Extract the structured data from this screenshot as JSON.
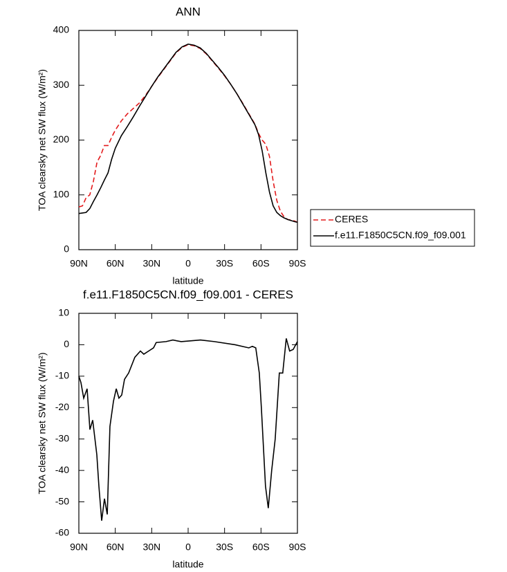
{
  "chart_data": [
    {
      "type": "line",
      "title": "ANN",
      "xlabel": "latitude",
      "ylabel": "TOA clearsky net SW flux (W/m²)",
      "x": [
        90,
        87,
        84,
        81,
        78,
        75,
        72,
        69,
        66,
        63,
        60,
        55,
        50,
        45,
        40,
        35,
        30,
        25,
        20,
        15,
        10,
        5,
        0,
        -5,
        -10,
        -15,
        -20,
        -25,
        -30,
        -35,
        -40,
        -45,
        -50,
        -55,
        -58,
        -61,
        -64,
        -67,
        -70,
        -73,
        -76,
        -79,
        -82,
        -85,
        -88,
        -90
      ],
      "series": [
        {
          "name": "CERES",
          "color": "#e31a1c",
          "dashed": true,
          "values": [
            78,
            80,
            95,
            100,
            125,
            160,
            172,
            190,
            190,
            205,
            218,
            235,
            248,
            258,
            268,
            282,
            298,
            314,
            329,
            344,
            359,
            369,
            374,
            372,
            367,
            357,
            344,
            331,
            317,
            302,
            285,
            267,
            248,
            229,
            212,
            200,
            192,
            170,
            125,
            90,
            70,
            60,
            55,
            54,
            52,
            50
          ]
        },
        {
          "name": "f.e11.F1850C5CN.f09_f09.001",
          "color": "#000000",
          "dashed": false,
          "values": [
            66,
            67,
            68,
            75,
            88,
            100,
            113,
            127,
            140,
            165,
            185,
            208,
            225,
            243,
            262,
            280,
            298,
            315,
            330,
            345,
            360,
            370,
            375,
            373,
            368,
            358,
            345,
            332,
            318,
            302,
            285,
            266,
            247,
            228,
            210,
            180,
            140,
            105,
            80,
            68,
            62,
            58,
            55,
            53,
            51,
            50
          ]
        }
      ],
      "xlim": [
        90,
        -90
      ],
      "xticks": [
        {
          "value": 90,
          "label": "90N"
        },
        {
          "value": 60,
          "label": "60N"
        },
        {
          "value": 30,
          "label": "30N"
        },
        0,
        {
          "value": -30,
          "label": "30S"
        },
        {
          "value": -60,
          "label": "60S"
        },
        {
          "value": -90,
          "label": "90S"
        }
      ],
      "ylim": [
        0,
        400
      ],
      "yticks": [
        0,
        100,
        200,
        300,
        400
      ],
      "legend": "right"
    },
    {
      "type": "line",
      "title": "f.e11.F1850C5CN.f09_f09.001 - CERES",
      "xlabel": "latitude",
      "ylabel": "TOA clearsky net SW flux (W/m²)",
      "x": [
        90,
        88.3,
        86,
        83.2,
        80.9,
        78.6,
        75.2,
        73.5,
        71.2,
        68.9,
        66.6,
        64.4,
        61.5,
        59.2,
        57,
        54.7,
        52.4,
        49,
        43.9,
        39.3,
        36.5,
        32.5,
        28.5,
        26.3,
        18.2,
        12.6,
        5.7,
        -10.2,
        -21.6,
        -38.7,
        -50,
        -52.9,
        -55.7,
        -58.6,
        -60.3,
        -63.7,
        -66,
        -68.8,
        -71.7,
        -75.1,
        -77.9,
        -80.8,
        -83.6,
        -86.5,
        -90
      ],
      "values": [
        -10,
        -12,
        -17,
        -14,
        -27,
        -24,
        -35,
        -45,
        -56,
        -49,
        -54,
        -26,
        -18,
        -14,
        -17,
        -16,
        -11,
        -9,
        -4,
        -2,
        -3,
        -2,
        -1,
        0.7,
        1,
        1.5,
        1,
        1.5,
        1,
        0,
        -1,
        -0.5,
        -1,
        -9,
        -20,
        -45,
        -52,
        -40,
        -30,
        -9,
        -9,
        2,
        -2,
        -1.5,
        1
      ],
      "color": "#000000",
      "xlim": [
        90,
        -90
      ],
      "xticks": [
        {
          "value": 90,
          "label": "90N"
        },
        {
          "value": 60,
          "label": "60N"
        },
        {
          "value": 30,
          "label": "30N"
        },
        0,
        {
          "value": -30,
          "label": "30S"
        },
        {
          "value": -60,
          "label": "60S"
        },
        {
          "value": -90,
          "label": "90S"
        }
      ],
      "ylim": [
        -60,
        10
      ],
      "yticks": [
        -60,
        -50,
        -40,
        -30,
        -20,
        -10,
        0,
        10
      ]
    }
  ]
}
